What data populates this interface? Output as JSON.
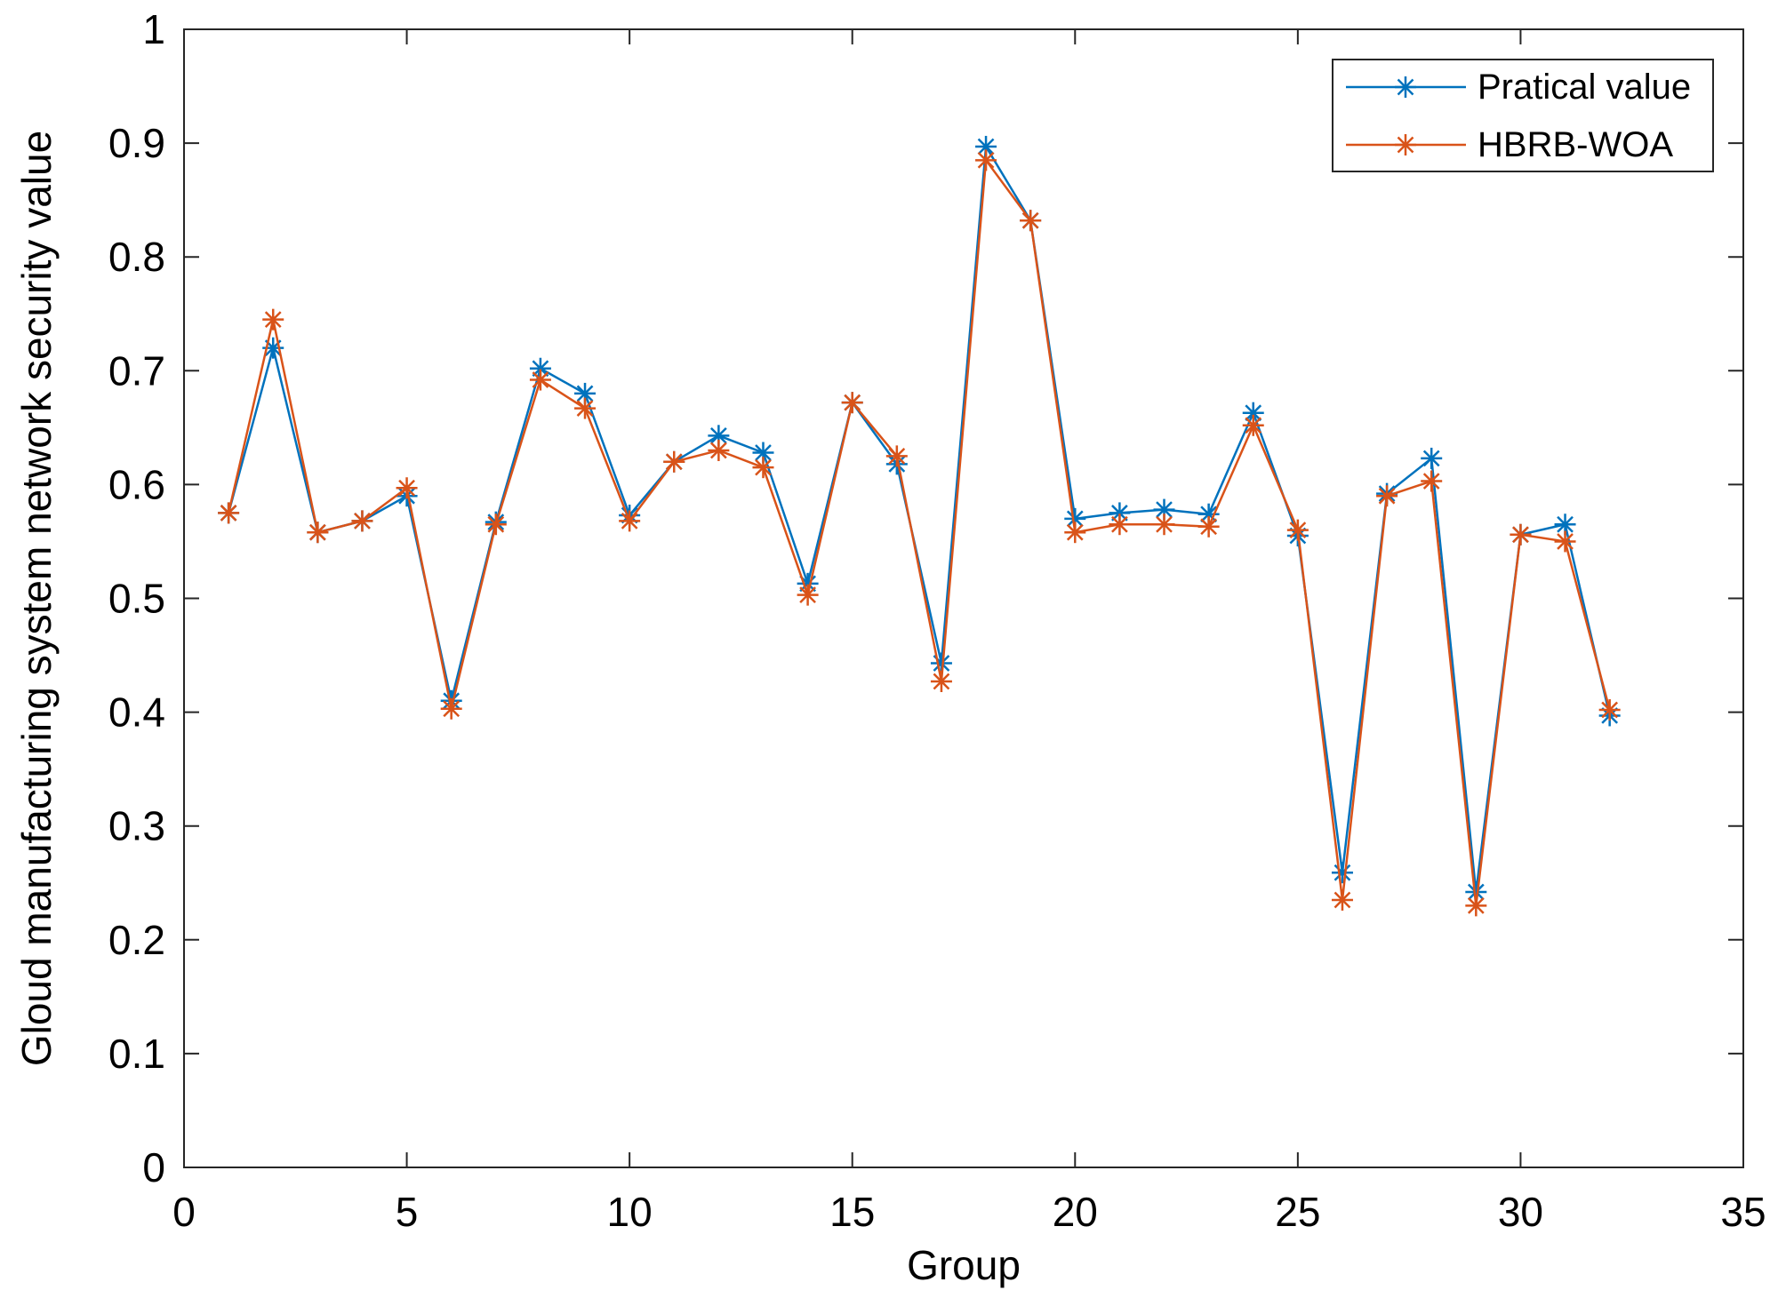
{
  "chart_data": {
    "type": "line",
    "title": "",
    "xlabel": "Group",
    "ylabel": "Gloud manufacturing system network security value",
    "xlim": [
      0,
      35
    ],
    "ylim": [
      0,
      1
    ],
    "xticks": [
      0,
      5,
      10,
      15,
      20,
      25,
      30,
      35
    ],
    "yticks": [
      0,
      0.1,
      0.2,
      0.3,
      0.4,
      0.5,
      0.6,
      0.7,
      0.8,
      0.9,
      1
    ],
    "ytick_labels": [
      "0",
      "0.1",
      "0.2",
      "0.3",
      "0.4",
      "0.5",
      "0.6",
      "0.7",
      "0.8",
      "0.9",
      "1"
    ],
    "grid": false,
    "legend_position": "top-right",
    "x": [
      1,
      2,
      3,
      4,
      5,
      6,
      7,
      8,
      9,
      10,
      11,
      12,
      13,
      14,
      15,
      16,
      17,
      18,
      19,
      20,
      21,
      22,
      23,
      24,
      25,
      26,
      27,
      28,
      29,
      30,
      31,
      32
    ],
    "series": [
      {
        "name": "Pratical value",
        "color": "#0072BD",
        "marker": "asterisk",
        "values": [
          0.575,
          0.72,
          0.558,
          0.568,
          0.59,
          0.41,
          0.567,
          0.702,
          0.68,
          0.573,
          0.62,
          0.643,
          0.628,
          0.513,
          0.672,
          0.618,
          0.443,
          0.897,
          0.832,
          0.57,
          0.575,
          0.578,
          0.574,
          0.663,
          0.555,
          0.259,
          0.592,
          0.623,
          0.242,
          0.556,
          0.565,
          0.397
        ]
      },
      {
        "name": "HBRB-WOA",
        "color": "#D95319",
        "marker": "asterisk",
        "values": [
          0.575,
          0.745,
          0.558,
          0.568,
          0.597,
          0.403,
          0.565,
          0.692,
          0.667,
          0.568,
          0.62,
          0.63,
          0.615,
          0.503,
          0.672,
          0.625,
          0.427,
          0.885,
          0.832,
          0.558,
          0.565,
          0.565,
          0.563,
          0.652,
          0.56,
          0.235,
          0.59,
          0.603,
          0.23,
          0.556,
          0.55,
          0.402
        ]
      }
    ]
  }
}
